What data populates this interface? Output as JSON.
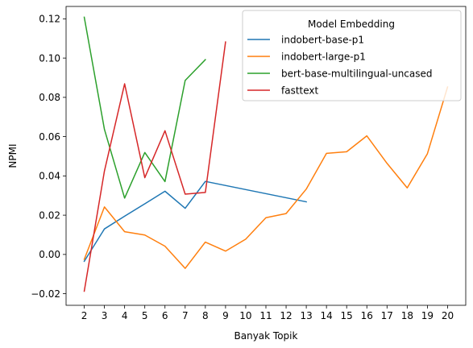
{
  "chart_data": {
    "type": "line",
    "xlabel": "Banyak Topik",
    "ylabel": "NPMI",
    "xlim": [
      1.1,
      20.9
    ],
    "ylim": [
      -0.0259,
      0.1263
    ],
    "x_ticks": [
      2,
      3,
      4,
      5,
      6,
      7,
      8,
      9,
      10,
      11,
      12,
      13,
      14,
      15,
      16,
      17,
      18,
      19,
      20
    ],
    "y_ticks": [
      -0.02,
      0.0,
      0.02,
      0.04,
      0.06,
      0.08,
      0.1,
      0.12
    ],
    "y_tick_labels": [
      "−0.02",
      "0.00",
      "0.02",
      "0.04",
      "0.06",
      "0.08",
      "0.10",
      "0.12"
    ],
    "grid": false,
    "legend": {
      "title": "Model Embedding",
      "placement": "top-right"
    },
    "series": [
      {
        "name": "indobert-base-p1",
        "color": "#1f77b4",
        "x": [
          2,
          3,
          4,
          5,
          6,
          7,
          8,
          13
        ],
        "y": [
          -0.0035,
          0.013,
          0.0195,
          0.0258,
          0.0322,
          0.0235,
          0.0372,
          0.0268
        ]
      },
      {
        "name": "indobert-large-p1",
        "color": "#ff7f0e",
        "x": [
          2,
          3,
          4,
          5,
          6,
          7,
          8,
          9,
          10,
          11,
          12,
          13,
          14,
          15,
          16,
          17,
          18,
          19,
          20
        ],
        "y": [
          -0.0025,
          0.0242,
          0.0116,
          0.0099,
          0.0042,
          -0.0071,
          0.0063,
          0.0017,
          0.0078,
          0.0187,
          0.0208,
          0.0333,
          0.0515,
          0.0523,
          0.0604,
          0.0464,
          0.0339,
          0.0513,
          0.0853
        ]
      },
      {
        "name": "bert-base-multilingual-uncased",
        "color": "#2ca02c",
        "x": [
          2,
          3,
          4,
          5,
          6,
          7,
          8
        ],
        "y": [
          0.1208,
          0.0637,
          0.0287,
          0.0519,
          0.0371,
          0.0886,
          0.0992
        ]
      },
      {
        "name": "fasttext",
        "color": "#d62728",
        "x": [
          2,
          3,
          4,
          5,
          6,
          7,
          8,
          9
        ],
        "y": [
          -0.0187,
          0.0425,
          0.0869,
          0.0391,
          0.063,
          0.0307,
          0.0316,
          0.1082
        ]
      }
    ]
  }
}
